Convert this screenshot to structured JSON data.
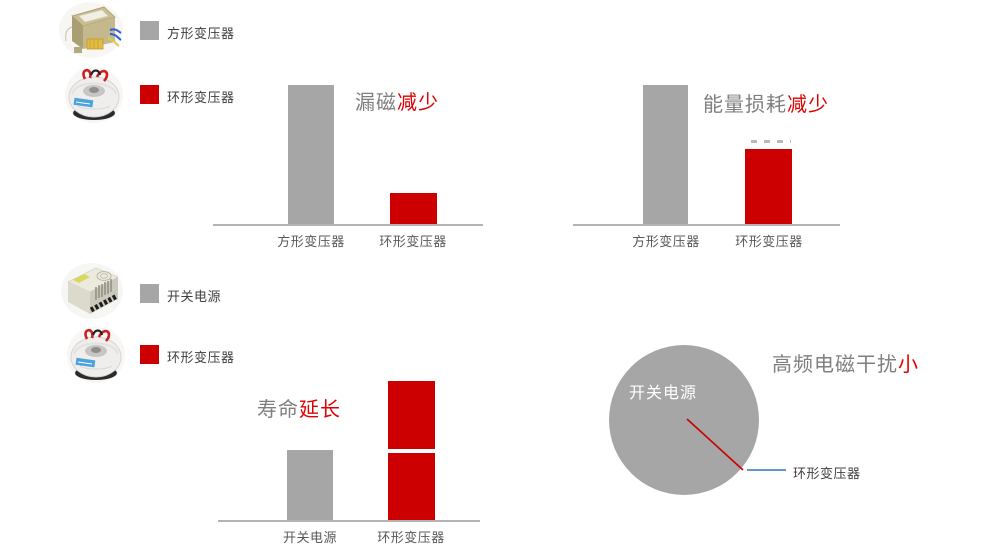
{
  "page": {
    "background": "#ffffff"
  },
  "colors": {
    "gray_series": "#a6a6a6",
    "red_series": "#cc0000",
    "title_plain_text": "#7f7f7f",
    "title_accent_text": "#e00000",
    "axis_line": "#b3b3b3",
    "tick_label": "#595959",
    "leader_line_blue": "#2e75b6",
    "pie_inner_label_text": "#ffffff"
  },
  "legend_top": {
    "items": [
      {
        "label": "方形变压器",
        "swatch_color": "#a6a6a6",
        "image": "ei-transformer-photo"
      },
      {
        "label": "环形变压器",
        "swatch_color": "#cc0000",
        "image": "toroidal-transformer-photo"
      }
    ]
  },
  "legend_bottom": {
    "items": [
      {
        "label": "开关电源",
        "swatch_color": "#a6a6a6",
        "image": "switching-power-supply-photo"
      },
      {
        "label": "环形变压器",
        "swatch_color": "#cc0000",
        "image": "toroidal-transformer-photo"
      }
    ]
  },
  "chart_data": [
    {
      "id": "leakage-flux",
      "type": "bar",
      "title_plain": "漏磁",
      "title_accent": "减少",
      "categories": [
        "方形变压器",
        "环形变压器"
      ],
      "values": [
        100,
        22
      ],
      "bar_colors": [
        "#a6a6a6",
        "#cc0000"
      ],
      "ylim": [
        0,
        100
      ],
      "grid": false,
      "legend_position": "none"
    },
    {
      "id": "energy-loss",
      "type": "bar",
      "title_plain": "能量损耗",
      "title_accent": "减少",
      "categories": [
        "方形变压器",
        "环形变压器"
      ],
      "values": [
        100,
        54
      ],
      "bar_colors": [
        "#a6a6a6",
        "#cc0000"
      ],
      "ylim": [
        0,
        100
      ],
      "grid": false,
      "legend_position": "none"
    },
    {
      "id": "lifespan",
      "type": "bar",
      "title_plain": "寿命",
      "title_accent": "延长",
      "categories": [
        "开关电源",
        "环形变压器"
      ],
      "values": [
        50,
        100
      ],
      "bar2_stacked_segments": [
        48,
        52
      ],
      "bar_colors": [
        "#a6a6a6",
        "#cc0000"
      ],
      "ylim": [
        0,
        100
      ],
      "grid": false,
      "legend_position": "none"
    },
    {
      "id": "emi",
      "type": "pie",
      "title_plain": "高频电磁干扰",
      "title_accent": "小",
      "slices": [
        {
          "label": "开关电源",
          "value": 99,
          "color": "#a6a6a6"
        },
        {
          "label": "环形变压器",
          "value": 1,
          "color": "#cc0000"
        }
      ],
      "legend_position": "none"
    }
  ]
}
